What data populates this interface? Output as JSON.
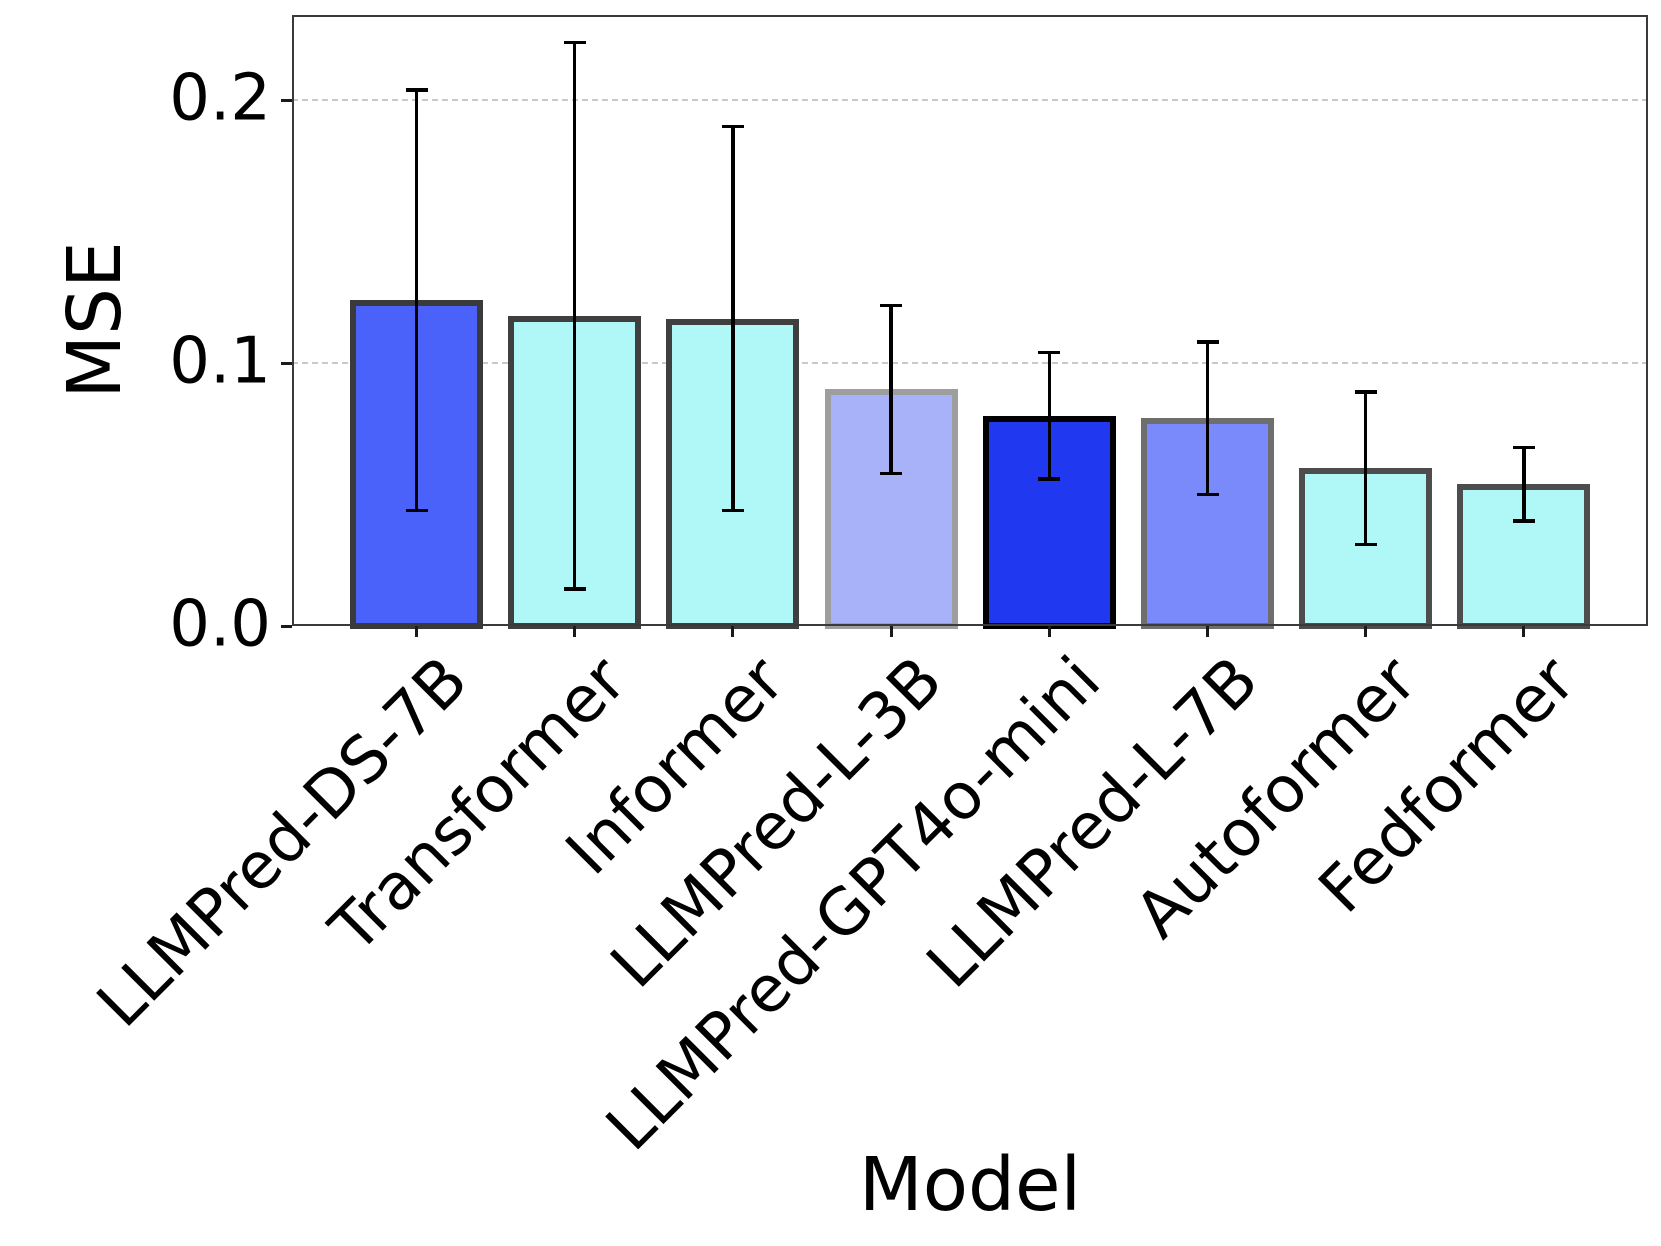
{
  "chart_data": {
    "type": "bar",
    "title": "",
    "xlabel": "Model",
    "ylabel": "MSE",
    "categories": [
      "LLMPred-DS-7B",
      "Transformer",
      "Informer",
      "LLMPred-L-3B",
      "LLMPred-GPT4o-mini",
      "LLMPred-L-7B",
      "Autoformer",
      "Fedformer"
    ],
    "series": [
      {
        "name": "MSE",
        "values": [
          0.124,
          0.118,
          0.117,
          0.09,
          0.08,
          0.079,
          0.06,
          0.054
        ],
        "errors": [
          0.08,
          0.104,
          0.073,
          0.032,
          0.024,
          0.029,
          0.029,
          0.014
        ]
      }
    ],
    "bar_fill_colors": [
      "#4a62fa",
      "#b0f7f7",
      "#b0f7f7",
      "#a8b2f8",
      "#2038f0",
      "#7a8afa",
      "#b0f7f7",
      "#b0f7f7"
    ],
    "bar_edge_colors": [
      "#3a3a3a",
      "#3f3f3f",
      "#3f3f3f",
      "#9e9e9e",
      "#000000",
      "#6e6e6e",
      "#4d4d4d",
      "#4d4d4d"
    ],
    "error_bar_color": "#000000",
    "yticks": {
      "values": [
        0.0,
        0.1,
        0.2
      ],
      "labels": [
        "0.0",
        "0.1",
        "0.2"
      ]
    },
    "ylim": [
      0,
      0.2325
    ],
    "grid": "horizontal-dashed",
    "legend": "none"
  }
}
